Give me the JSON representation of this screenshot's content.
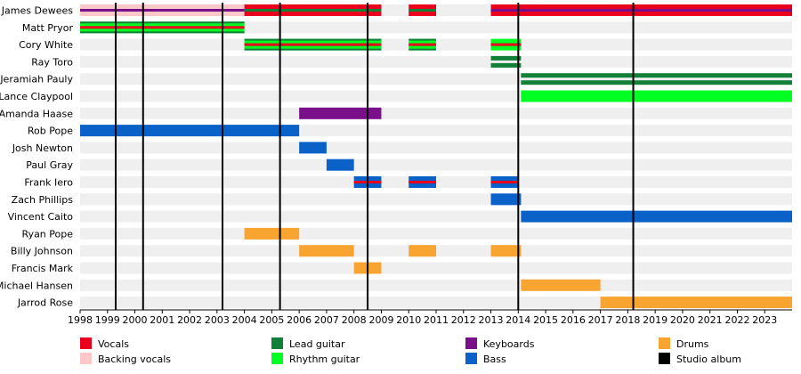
{
  "chart_data": {
    "type": "bar",
    "title": "",
    "xlabel": "",
    "ylabel": "",
    "xlim": [
      1998.0,
      2024.0
    ],
    "x_ticks": [
      "1998",
      "1999",
      "2000",
      "2001",
      "2002",
      "2003",
      "2004",
      "2005",
      "2006",
      "2007",
      "2008",
      "2009",
      "2010",
      "2011",
      "2012",
      "2013",
      "2014",
      "2015",
      "2016",
      "2017",
      "2018",
      "2019",
      "2020",
      "2021",
      "2022",
      "2023"
    ],
    "colors": {
      "vocals": "#e8001c",
      "backing_vocals": "#ffc8c8",
      "lead_guitar": "#128037",
      "rhythm_guitar": "#00ff22",
      "keyboards": "#7a0f8a",
      "bass": "#0a62c9",
      "drums": "#f8a431",
      "studio_album": "#000000"
    },
    "legend": [
      {
        "key": "vocals",
        "label": "Vocals"
      },
      {
        "key": "backing_vocals",
        "label": "Backing vocals"
      },
      {
        "key": "lead_guitar",
        "label": "Lead guitar"
      },
      {
        "key": "rhythm_guitar",
        "label": "Rhythm guitar"
      },
      {
        "key": "keyboards",
        "label": "Keyboards"
      },
      {
        "key": "bass",
        "label": "Bass"
      },
      {
        "key": "drums",
        "label": "Drums"
      },
      {
        "key": "studio_album",
        "label": "Studio album"
      }
    ],
    "albums": [
      1999.3,
      2000.3,
      2003.2,
      2005.3,
      2008.5,
      2014.0,
      2018.2
    ],
    "members": [
      {
        "name": "James Dewees",
        "bars": [
          {
            "start": 1998.0,
            "end": 2009.0,
            "main": "vocals",
            "stripe": "lead_guitar"
          },
          {
            "start": 1998.0,
            "end": 2004.0,
            "main": "backing_vocals",
            "stripe": "keyboards"
          },
          {
            "start": 2010.0,
            "end": 2011.0,
            "main": "vocals",
            "stripe": "lead_guitar"
          },
          {
            "start": 2013.0,
            "end": 2024.0,
            "main": "vocals",
            "stripe": "keyboards"
          }
        ]
      },
      {
        "name": "Matt Pryor",
        "bars": [
          {
            "start": 1998.0,
            "end": 2004.0,
            "main": "rhythm_guitar",
            "stripe": "vocals",
            "edge": "lead_guitar"
          }
        ]
      },
      {
        "name": "Cory White",
        "bars": [
          {
            "start": 2004.0,
            "end": 2009.0,
            "main": "rhythm_guitar",
            "stripe": "vocals",
            "edge": "lead_guitar"
          },
          {
            "start": 2010.0,
            "end": 2011.0,
            "main": "rhythm_guitar",
            "stripe": "vocals",
            "edge": "lead_guitar"
          },
          {
            "start": 2013.0,
            "end": 2014.1,
            "main": "rhythm_guitar",
            "stripe": "vocals"
          }
        ]
      },
      {
        "name": "Ray Toro",
        "bars": [
          {
            "start": 2013.0,
            "end": 2014.1,
            "main": "lead_guitar",
            "split": true
          }
        ]
      },
      {
        "name": "Jeramiah Pauly",
        "bars": [
          {
            "start": 2014.1,
            "end": 2024.0,
            "main": "lead_guitar",
            "split": true
          }
        ]
      },
      {
        "name": "Lance Claypool",
        "bars": [
          {
            "start": 2014.1,
            "end": 2024.0,
            "main": "rhythm_guitar"
          }
        ]
      },
      {
        "name": "Amanda Haase",
        "bars": [
          {
            "start": 2006.0,
            "end": 2009.0,
            "main": "keyboards"
          }
        ]
      },
      {
        "name": "Rob Pope",
        "bars": [
          {
            "start": 1998.0,
            "end": 2006.0,
            "main": "bass"
          }
        ]
      },
      {
        "name": "Josh Newton",
        "bars": [
          {
            "start": 2006.0,
            "end": 2007.0,
            "main": "bass"
          }
        ]
      },
      {
        "name": "Paul Gray",
        "bars": [
          {
            "start": 2007.0,
            "end": 2008.0,
            "main": "bass"
          }
        ]
      },
      {
        "name": "Frank Iero",
        "bars": [
          {
            "start": 2008.0,
            "end": 2009.0,
            "main": "bass",
            "stripe": "vocals"
          },
          {
            "start": 2010.0,
            "end": 2011.0,
            "main": "bass",
            "stripe": "vocals"
          },
          {
            "start": 2013.0,
            "end": 2014.0,
            "main": "bass",
            "stripe": "vocals"
          }
        ]
      },
      {
        "name": "Zach Phillips",
        "bars": [
          {
            "start": 2013.0,
            "end": 2014.1,
            "main": "bass"
          }
        ]
      },
      {
        "name": "Vincent Caito",
        "bars": [
          {
            "start": 2014.1,
            "end": 2024.0,
            "main": "bass"
          }
        ]
      },
      {
        "name": "Ryan Pope",
        "bars": [
          {
            "start": 2004.0,
            "end": 2006.0,
            "main": "drums"
          }
        ]
      },
      {
        "name": "Billy Johnson",
        "bars": [
          {
            "start": 2006.0,
            "end": 2008.0,
            "main": "drums"
          },
          {
            "start": 2010.0,
            "end": 2011.0,
            "main": "drums"
          },
          {
            "start": 2013.0,
            "end": 2014.1,
            "main": "drums"
          }
        ]
      },
      {
        "name": "Francis Mark",
        "bars": [
          {
            "start": 2008.0,
            "end": 2009.0,
            "main": "drums"
          }
        ]
      },
      {
        "name": "Michael Hansen",
        "bars": [
          {
            "start": 2014.1,
            "end": 2017.0,
            "main": "drums"
          }
        ]
      },
      {
        "name": "Jarrod Rose",
        "bars": [
          {
            "start": 2017.0,
            "end": 2024.0,
            "main": "drums"
          }
        ]
      }
    ]
  }
}
